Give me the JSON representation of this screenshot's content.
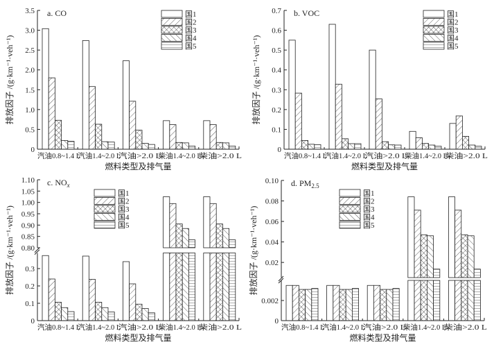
{
  "series_names": [
    "国1",
    "国2",
    "国3",
    "国4",
    "国5"
  ],
  "categories": [
    "汽油0.8~1.4 L",
    "汽油1.4~2.0 L",
    "汽油>2.0 L",
    "柴油1.4~2.0 L",
    "柴油>2.0 L"
  ],
  "xlabel": "燃料类型及排气量",
  "ylabel": "排放因子 /(g·km⁻¹·veh⁻¹)",
  "chart_data": [
    {
      "type": "bar",
      "title": "a. CO",
      "title_sub": "",
      "ylim": [
        0,
        3.5
      ],
      "yticks": [
        "0",
        "0.5",
        "1.0",
        "1.5",
        "2.0",
        "2.5",
        "3.0",
        "3.5"
      ],
      "ytick_values": [
        0,
        0.5,
        1.0,
        1.5,
        2.0,
        2.5,
        3.0,
        3.5
      ],
      "legend": "top-right",
      "series": [
        {
          "name": "国1",
          "values": [
            3.04,
            2.74,
            2.23,
            0.72,
            0.72
          ]
        },
        {
          "name": "国2",
          "values": [
            1.8,
            1.58,
            1.21,
            0.62,
            0.62
          ]
        },
        {
          "name": "国3",
          "values": [
            0.73,
            0.63,
            0.48,
            0.17,
            0.17
          ]
        },
        {
          "name": "国4",
          "values": [
            0.22,
            0.19,
            0.15,
            0.16,
            0.16
          ]
        },
        {
          "name": "国5",
          "values": [
            0.2,
            0.18,
            0.12,
            0.08,
            0.08
          ]
        }
      ]
    },
    {
      "type": "bar",
      "title": "b. VOC",
      "title_sub": "",
      "ylim": [
        0,
        0.7
      ],
      "yticks": [
        "0",
        "0.1",
        "0.2",
        "0.3",
        "0.4",
        "0.5",
        "0.6",
        "0.7"
      ],
      "ytick_values": [
        0,
        0.1,
        0.2,
        0.3,
        0.4,
        0.5,
        0.6,
        0.7
      ],
      "legend": "top-right",
      "series": [
        {
          "name": "国1",
          "values": [
            0.55,
            0.63,
            0.5,
            0.09,
            0.13
          ]
        },
        {
          "name": "国2",
          "values": [
            0.283,
            0.328,
            0.254,
            0.058,
            0.168
          ]
        },
        {
          "name": "国3",
          "values": [
            0.044,
            0.053,
            0.038,
            0.029,
            0.065
          ]
        },
        {
          "name": "国4",
          "values": [
            0.025,
            0.028,
            0.022,
            0.021,
            0.021
          ]
        },
        {
          "name": "国5",
          "values": [
            0.023,
            0.028,
            0.021,
            0.015,
            0.015
          ]
        }
      ]
    },
    {
      "type": "bar",
      "title": "c. NO",
      "title_sub": "x",
      "ylim": [
        0,
        1.1
      ],
      "axis_break": [
        0.39,
        0.8
      ],
      "yticks": [
        "0",
        "0.1",
        "0.2",
        "0.3",
        "0.80",
        "0.85",
        "0.90",
        "0.95",
        "1.00",
        "1.05",
        "1.10"
      ],
      "ytick_values": [
        0,
        0.1,
        0.2,
        0.3,
        0.8,
        0.85,
        0.9,
        0.95,
        1.0,
        1.05,
        1.1
      ],
      "legend": "top-center",
      "series": [
        {
          "name": "国1",
          "values": [
            0.375,
            0.372,
            0.34,
            1.025,
            1.025
          ]
        },
        {
          "name": "国2",
          "values": [
            0.24,
            0.238,
            0.212,
            0.995,
            0.995
          ]
        },
        {
          "name": "国3",
          "values": [
            0.106,
            0.106,
            0.095,
            0.905,
            0.905
          ]
        },
        {
          "name": "国4",
          "values": [
            0.075,
            0.075,
            0.07,
            0.885,
            0.885
          ]
        },
        {
          "name": "国5",
          "values": [
            0.052,
            0.05,
            0.045,
            0.835,
            0.835
          ]
        }
      ]
    },
    {
      "type": "bar",
      "title": "d. PM",
      "title_sub": "2.5",
      "ylim": [
        0,
        0.1
      ],
      "axis_break": [
        0.004,
        0.0052
      ],
      "yticks": [
        "0",
        "0.002",
        "0.02",
        "0.04",
        "0.06",
        "0.08",
        "0.10"
      ],
      "ytick_values": [
        0,
        0.002,
        0.02,
        0.04,
        0.06,
        0.08,
        0.1
      ],
      "legend": "top-center",
      "series": [
        {
          "name": "国1",
          "values": [
            0.0035,
            0.0035,
            0.0035,
            0.084,
            0.084
          ]
        },
        {
          "name": "国2",
          "values": [
            0.0035,
            0.0035,
            0.0035,
            0.071,
            0.071
          ]
        },
        {
          "name": "国3",
          "values": [
            0.0031,
            0.0031,
            0.0031,
            0.047,
            0.047
          ]
        },
        {
          "name": "国4",
          "values": [
            0.0031,
            0.0031,
            0.0031,
            0.046,
            0.046
          ]
        },
        {
          "name": "国5",
          "values": [
            0.0032,
            0.0032,
            0.0032,
            0.0135,
            0.0135
          ]
        }
      ]
    }
  ]
}
